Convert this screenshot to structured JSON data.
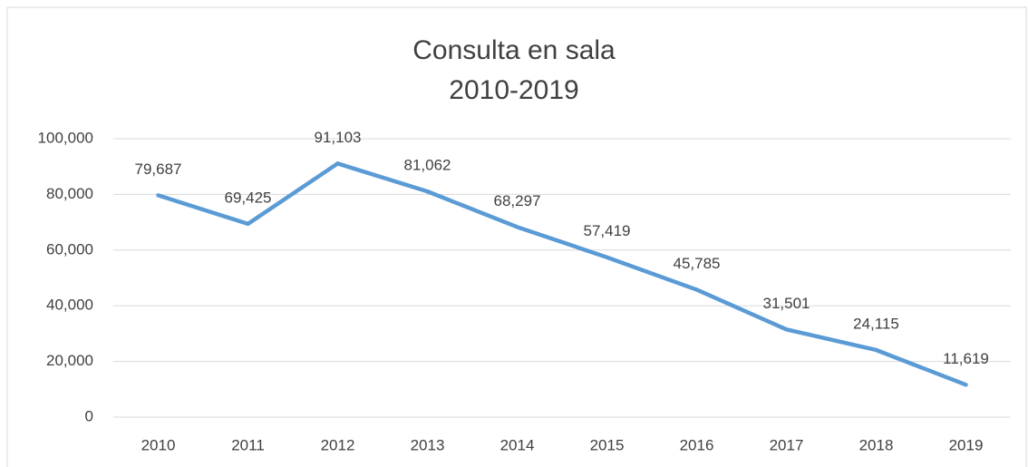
{
  "chart_data": {
    "type": "line",
    "title": "Consulta en sala",
    "subtitle": "2010-2019",
    "categories": [
      "2010",
      "2011",
      "2012",
      "2013",
      "2014",
      "2015",
      "2016",
      "2017",
      "2018",
      "2019"
    ],
    "values": [
      79687,
      69425,
      91103,
      81062,
      68297,
      57419,
      45785,
      31501,
      24115,
      11619
    ],
    "value_labels": [
      "79,687",
      "69,425",
      "91,103",
      "81,062",
      "68,297",
      "57,419",
      "45,785",
      "31,501",
      "24,115",
      "11,619"
    ],
    "color": "#5b9bd5",
    "ylim": [
      0,
      100000
    ],
    "yticks": [
      0,
      {
        "value": 20000,
        "label": "20,000"
      },
      {
        "value": 40000,
        "label": "40,000"
      },
      {
        "value": 60000,
        "label": "60,000"
      },
      {
        "value": 80000,
        "label": "80,000"
      },
      {
        "value": 100000,
        "label": "100,000"
      }
    ],
    "grid": true
  }
}
